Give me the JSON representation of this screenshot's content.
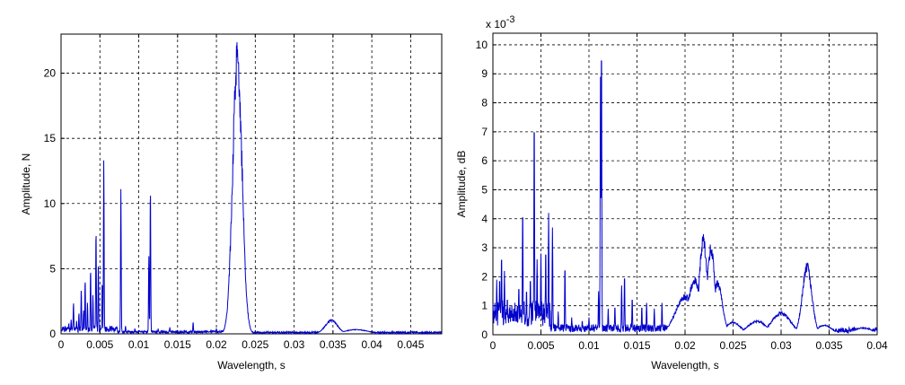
{
  "chart_data": [
    {
      "type": "line",
      "xlabel": "Wavelength, s",
      "ylabel": "Amplitude, N",
      "xlim": [
        0,
        0.049
      ],
      "ylim": [
        0,
        23
      ],
      "xticks": [
        0,
        0.005,
        0.01,
        0.015,
        0.02,
        0.025,
        0.03,
        0.035,
        0.04,
        0.045
      ],
      "xticklabels": [
        "0",
        "0.005",
        "0.01",
        "0.015",
        "0.02",
        "0.025",
        "0.03",
        "0.035",
        "0.04",
        "0.045"
      ],
      "yticks": [
        0,
        5,
        10,
        15,
        20
      ],
      "yticklabels": [
        "0",
        "5",
        "10",
        "15",
        "20"
      ],
      "grid": true,
      "line_color": "#0000cc",
      "baseline": 0.2,
      "peaks": [
        {
          "x": 0.0005,
          "y": 0.6
        },
        {
          "x": 0.001,
          "y": 0.8
        },
        {
          "x": 0.0013,
          "y": 1.1
        },
        {
          "x": 0.0016,
          "y": 2.4
        },
        {
          "x": 0.002,
          "y": 1.0
        },
        {
          "x": 0.0023,
          "y": 1.6
        },
        {
          "x": 0.0026,
          "y": 3.4
        },
        {
          "x": 0.0029,
          "y": 1.8
        },
        {
          "x": 0.0031,
          "y": 4.2
        },
        {
          "x": 0.0034,
          "y": 2.4
        },
        {
          "x": 0.0038,
          "y": 5.0
        },
        {
          "x": 0.0041,
          "y": 3.0
        },
        {
          "x": 0.0045,
          "y": 8.0
        },
        {
          "x": 0.0048,
          "y": 5.2
        },
        {
          "x": 0.0053,
          "y": 4.0
        },
        {
          "x": 0.0055,
          "y": 13.4
        },
        {
          "x": 0.0077,
          "y": 11.1
        },
        {
          "x": 0.0083,
          "y": 0.6
        },
        {
          "x": 0.0095,
          "y": 0.4
        },
        {
          "x": 0.0113,
          "y": 6.0
        },
        {
          "x": 0.0115,
          "y": 11.3
        },
        {
          "x": 0.0125,
          "y": 0.4
        },
        {
          "x": 0.014,
          "y": 0.5
        },
        {
          "x": 0.017,
          "y": 0.9
        },
        {
          "x": 0.02,
          "y": 0.4
        }
      ],
      "bumps": [
        {
          "x": 0.0227,
          "y": 22.7,
          "width": 0.0006
        },
        {
          "x": 0.0348,
          "y": 1.1,
          "width": 0.0008
        },
        {
          "x": 0.038,
          "y": 0.35,
          "width": 0.0015
        }
      ]
    },
    {
      "type": "line",
      "xlabel": "Wavelength, s",
      "ylabel": "Amplitude, dB",
      "scale_label": "x 10",
      "scale_exponent": "-3",
      "xlim": [
        0,
        0.04
      ],
      "ylim": [
        0,
        10.4
      ],
      "xticks": [
        0,
        0.005,
        0.01,
        0.015,
        0.02,
        0.025,
        0.03,
        0.035,
        0.04
      ],
      "xticklabels": [
        "0",
        "0.005",
        "0.01",
        "0.015",
        "0.02",
        "0.025",
        "0.03",
        "0.035",
        "0.04"
      ],
      "yticks": [
        0,
        1,
        2,
        3,
        4,
        5,
        6,
        7,
        8,
        9,
        10
      ],
      "yticklabels": [
        "0",
        "1",
        "2",
        "3",
        "4",
        "5",
        "6",
        "7",
        "8",
        "9",
        "10"
      ],
      "grid": true,
      "line_color": "#0000cc",
      "baseline": 0.3,
      "peaks": [
        {
          "x": 0.0004,
          "y": 1.9
        },
        {
          "x": 0.0007,
          "y": 2.0
        },
        {
          "x": 0.0009,
          "y": 2.8
        },
        {
          "x": 0.0012,
          "y": 2.2
        },
        {
          "x": 0.0015,
          "y": 1.3
        },
        {
          "x": 0.0019,
          "y": 0.9
        },
        {
          "x": 0.0023,
          "y": 1.0
        },
        {
          "x": 0.0027,
          "y": 1.7
        },
        {
          "x": 0.0031,
          "y": 4.4
        },
        {
          "x": 0.0035,
          "y": 1.6
        },
        {
          "x": 0.0039,
          "y": 2.0
        },
        {
          "x": 0.0043,
          "y": 7.6
        },
        {
          "x": 0.0046,
          "y": 2.6
        },
        {
          "x": 0.005,
          "y": 2.8
        },
        {
          "x": 0.0055,
          "y": 3.0
        },
        {
          "x": 0.0058,
          "y": 4.2
        },
        {
          "x": 0.0062,
          "y": 3.7
        },
        {
          "x": 0.0068,
          "y": 0.8
        },
        {
          "x": 0.0075,
          "y": 2.4
        },
        {
          "x": 0.0082,
          "y": 0.6
        },
        {
          "x": 0.0093,
          "y": 0.5
        },
        {
          "x": 0.01,
          "y": 0.6
        },
        {
          "x": 0.011,
          "y": 1.5
        },
        {
          "x": 0.0112,
          "y": 8.9
        },
        {
          "x": 0.0113,
          "y": 10.3
        },
        {
          "x": 0.012,
          "y": 0.9
        },
        {
          "x": 0.0127,
          "y": 1.0
        },
        {
          "x": 0.0134,
          "y": 1.7
        },
        {
          "x": 0.0137,
          "y": 2.1
        },
        {
          "x": 0.0145,
          "y": 1.3
        },
        {
          "x": 0.0155,
          "y": 1.0
        },
        {
          "x": 0.016,
          "y": 1.1
        },
        {
          "x": 0.0168,
          "y": 0.9
        },
        {
          "x": 0.0176,
          "y": 1.1
        }
      ],
      "bumps": [
        {
          "x": 0.0022,
          "y": 0.5,
          "width": 0.0015
        },
        {
          "x": 0.02,
          "y": 1.4,
          "width": 0.001
        },
        {
          "x": 0.021,
          "y": 2.0,
          "width": 0.0007
        },
        {
          "x": 0.0219,
          "y": 3.5,
          "width": 0.0004
        },
        {
          "x": 0.0227,
          "y": 3.2,
          "width": 0.0004
        },
        {
          "x": 0.0234,
          "y": 1.9,
          "width": 0.0005
        },
        {
          "x": 0.025,
          "y": 0.45,
          "width": 0.0008
        },
        {
          "x": 0.0275,
          "y": 0.5,
          "width": 0.001
        },
        {
          "x": 0.03,
          "y": 0.8,
          "width": 0.001
        },
        {
          "x": 0.0327,
          "y": 2.5,
          "width": 0.0005
        },
        {
          "x": 0.0345,
          "y": 0.35,
          "width": 0.0008
        },
        {
          "x": 0.0385,
          "y": 0.25,
          "width": 0.001
        }
      ]
    }
  ]
}
